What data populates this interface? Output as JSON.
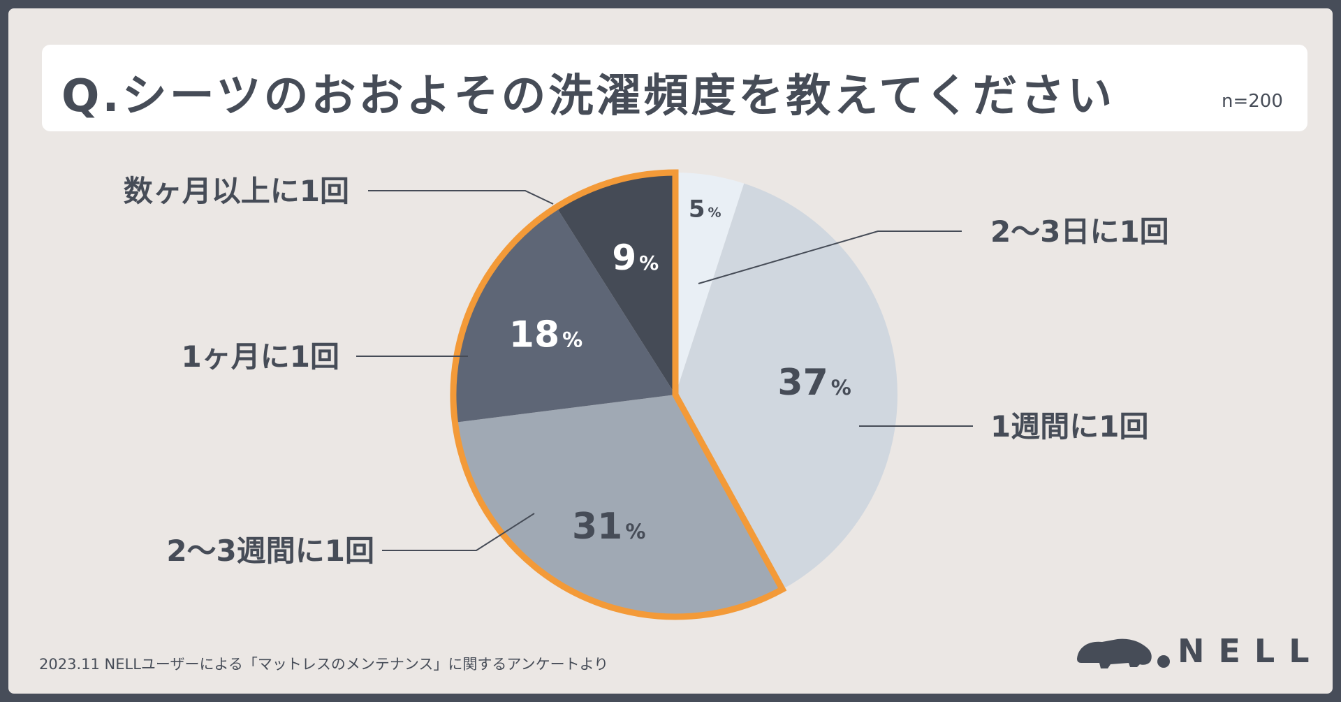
{
  "title": "Q.シーツのおおよその洗濯頻度を教えてください",
  "sample_size": "n=200",
  "footer_note": "2023.11 NELLユーザーによる「マットレスのメンテナンス」に関するアンケートより",
  "logo_text": "NELL",
  "colors": {
    "background": "#ebe7e4",
    "frame": "#474d59",
    "text": "#464c57",
    "highlight_outline": "#f39a38",
    "leader_line": "#454b56"
  },
  "chart_data": {
    "type": "pie",
    "title": "Q.シーツのおおよその洗濯頻度を教えてください",
    "start": "12 o'clock, clockwise",
    "highlighted_group": [
      "2〜3週間に1回",
      "1ヶ月に1回",
      "数ヶ月以上に1回"
    ],
    "slices": [
      {
        "label": "2〜3日に1回",
        "value": 5,
        "value_label": "5",
        "color": "#e9eff5",
        "value_color": "#464c57"
      },
      {
        "label": "1週間に1回",
        "value": 37,
        "value_label": "37",
        "color": "#d0d7df",
        "value_color": "#464c57"
      },
      {
        "label": "2〜3週間に1回",
        "value": 31,
        "value_label": "31",
        "color": "#a0a9b4",
        "value_color": "#464c57"
      },
      {
        "label": "1ヶ月に1回",
        "value": 18,
        "value_label": "18",
        "color": "#5e6676",
        "value_color": "#ffffff"
      },
      {
        "label": "数ヶ月以上に1回",
        "value": 9,
        "value_label": "9",
        "color": "#454b56",
        "value_color": "#ffffff"
      }
    ],
    "unit": "%"
  }
}
